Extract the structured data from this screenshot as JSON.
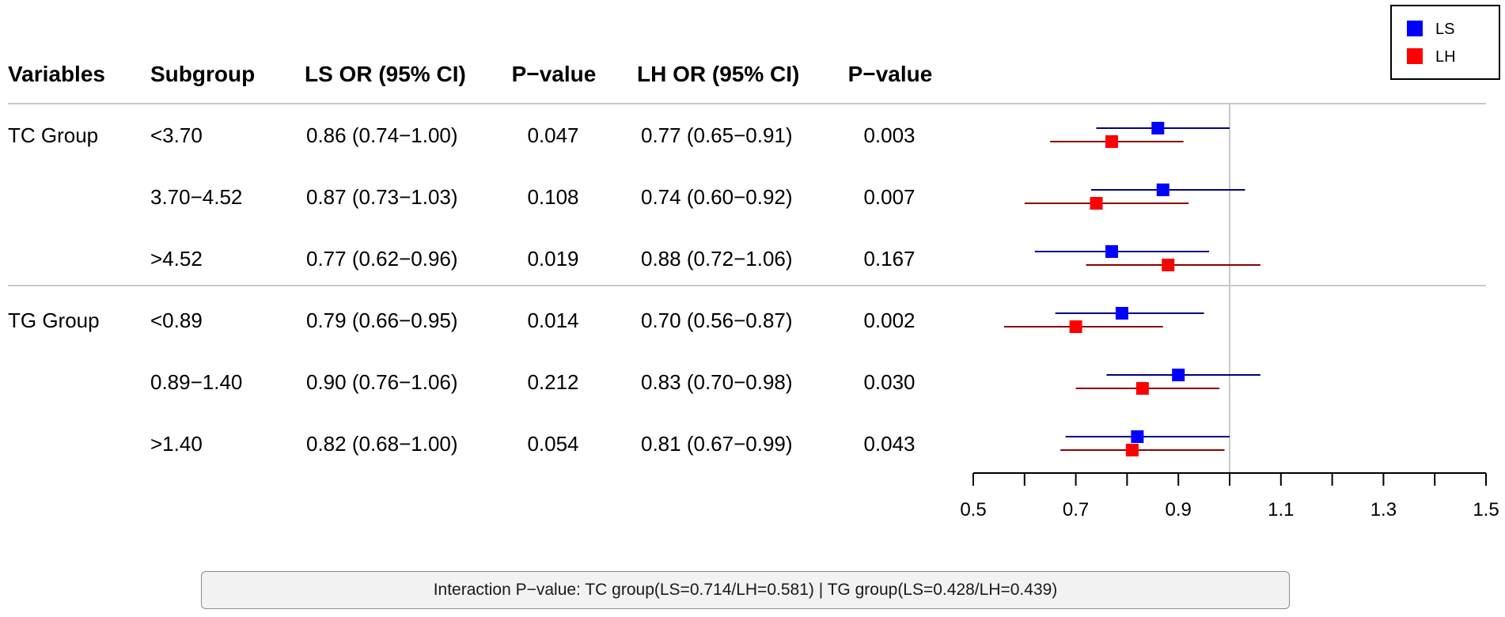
{
  "chart_data": {
    "type": "forest",
    "columns": [
      "Variables",
      "Subgroup",
      "LS OR (95% CI)",
      "P−value",
      "LH OR (95% CI)",
      "P−value"
    ],
    "groups": [
      {
        "name": "TC Group",
        "rows": [
          {
            "subgroup": "<3.70",
            "ls_text": "0.86 (0.74−1.00)",
            "ls_p": "0.047",
            "lh_text": "0.77 (0.65−0.91)",
            "lh_p": "0.003",
            "ls": {
              "or": 0.86,
              "lo": 0.74,
              "hi": 1.0
            },
            "lh": {
              "or": 0.77,
              "lo": 0.65,
              "hi": 0.91
            }
          },
          {
            "subgroup": "3.70−4.52",
            "ls_text": "0.87 (0.73−1.03)",
            "ls_p": "0.108",
            "lh_text": "0.74 (0.60−0.92)",
            "lh_p": "0.007",
            "ls": {
              "or": 0.87,
              "lo": 0.73,
              "hi": 1.03
            },
            "lh": {
              "or": 0.74,
              "lo": 0.6,
              "hi": 0.92
            }
          },
          {
            "subgroup": ">4.52",
            "ls_text": "0.77 (0.62−0.96)",
            "ls_p": "0.019",
            "lh_text": "0.88 (0.72−1.06)",
            "lh_p": "0.167",
            "ls": {
              "or": 0.77,
              "lo": 0.62,
              "hi": 0.96
            },
            "lh": {
              "or": 0.88,
              "lo": 0.72,
              "hi": 1.06
            }
          }
        ]
      },
      {
        "name": "TG Group",
        "rows": [
          {
            "subgroup": "<0.89",
            "ls_text": "0.79 (0.66−0.95)",
            "ls_p": "0.014",
            "lh_text": "0.70 (0.56−0.87)",
            "lh_p": "0.002",
            "ls": {
              "or": 0.79,
              "lo": 0.66,
              "hi": 0.95
            },
            "lh": {
              "or": 0.7,
              "lo": 0.56,
              "hi": 0.87
            }
          },
          {
            "subgroup": "0.89−1.40",
            "ls_text": "0.90 (0.76−1.06)",
            "ls_p": "0.212",
            "lh_text": "0.83 (0.70−0.98)",
            "lh_p": "0.030",
            "ls": {
              "or": 0.9,
              "lo": 0.76,
              "hi": 1.06
            },
            "lh": {
              "or": 0.83,
              "lo": 0.7,
              "hi": 0.98
            }
          },
          {
            "subgroup": ">1.40",
            "ls_text": "0.82 (0.68−1.00)",
            "ls_p": "0.054",
            "lh_text": "0.81 (0.67−0.99)",
            "lh_p": "0.043",
            "ls": {
              "or": 0.82,
              "lo": 0.68,
              "hi": 1.0
            },
            "lh": {
              "or": 0.81,
              "lo": 0.67,
              "hi": 0.99
            }
          }
        ]
      }
    ],
    "series": [
      {
        "name": "LS",
        "key": "ls",
        "color": "#0000ff",
        "line_color": "#00008b"
      },
      {
        "name": "LH",
        "key": "lh",
        "color": "#ff0000",
        "line_color": "#8b0000"
      }
    ],
    "xlim": [
      0.5,
      1.5
    ],
    "xticks": [
      "0.5",
      "0.7",
      "0.9",
      "1.1",
      "1.3",
      "1.5"
    ],
    "reference_line": 1.0,
    "legend": "top-right"
  },
  "footer": {
    "note": "Interaction P−value: TC group(LS=0.714/LH=0.581) | TG group(LS=0.428/LH=0.439)"
  }
}
